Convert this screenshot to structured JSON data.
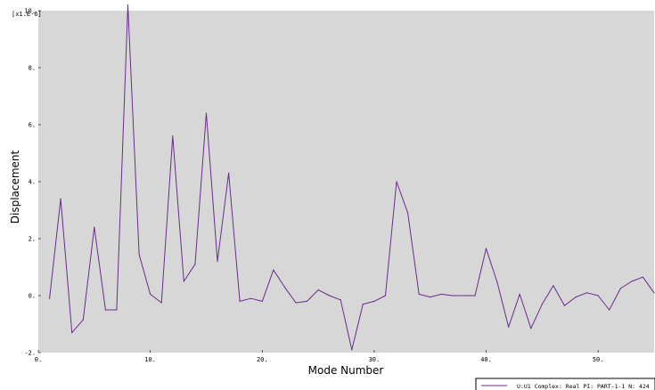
{
  "chart_data": {
    "type": "line",
    "xlabel": "Mode Number",
    "ylabel": "Displacement",
    "y_multiplier_label": "[x1.E-6]",
    "xlim": [
      0,
      55
    ],
    "ylim": [
      -2,
      10
    ],
    "x_ticks": [
      {
        "value": 0,
        "label": "0."
      },
      {
        "value": 10,
        "label": "10."
      },
      {
        "value": 20,
        "label": "20."
      },
      {
        "value": 30,
        "label": "30."
      },
      {
        "value": 40,
        "label": "40."
      },
      {
        "value": 50,
        "label": "50."
      }
    ],
    "y_ticks": [
      {
        "value": -2,
        "label": "-2."
      },
      {
        "value": 0,
        "label": "0."
      },
      {
        "value": 2,
        "label": "2."
      },
      {
        "value": 4,
        "label": "4."
      },
      {
        "value": 6,
        "label": "6."
      },
      {
        "value": 8,
        "label": "8."
      },
      {
        "value": 10,
        "label": "10."
      }
    ],
    "grid": false,
    "background": "#d7d7d7",
    "legend_position": "bottom-right",
    "series": [
      {
        "name": "U:U1   Complex: Real PI: PART-1-1 N: 424",
        "color": "#6a2c8c",
        "x": [
          1,
          2,
          3,
          4,
          5,
          6,
          7,
          8,
          9,
          10,
          11,
          12,
          13,
          14,
          15,
          16,
          17,
          18,
          19,
          20,
          21,
          22,
          23,
          24,
          25,
          26,
          27,
          28,
          29,
          30,
          31,
          32,
          33,
          34,
          35,
          36,
          37,
          38,
          39,
          40,
          41,
          42,
          43,
          44,
          45,
          46,
          47,
          48,
          49,
          50,
          51,
          52,
          53,
          54,
          55
        ],
        "y": [
          -0.1,
          3.4,
          -1.3,
          -0.85,
          2.4,
          -0.5,
          -0.5,
          10.2,
          1.45,
          0.05,
          -0.25,
          5.6,
          0.5,
          1.1,
          6.4,
          1.2,
          4.3,
          -0.2,
          -0.1,
          -0.2,
          0.9,
          0.3,
          -0.25,
          -0.2,
          0.2,
          0.0,
          -0.15,
          -1.9,
          -0.3,
          -0.2,
          0.0,
          4.0,
          2.9,
          0.05,
          -0.05,
          0.05,
          0.0,
          0.0,
          0.0,
          1.65,
          0.45,
          -1.1,
          0.05,
          -1.15,
          -0.3,
          0.35,
          -0.35,
          -0.05,
          0.1,
          0.0,
          -0.5,
          0.25,
          0.5,
          0.65,
          0.1
        ]
      }
    ]
  }
}
